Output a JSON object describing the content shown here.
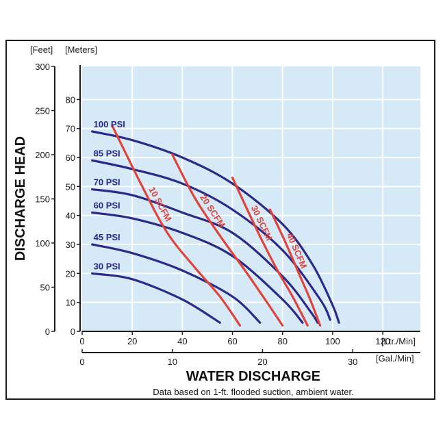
{
  "chart_data": {
    "type": "line",
    "title": "",
    "xlabel": "WATER DISCHARGE",
    "ylabel": "DISCHARGE HEAD",
    "note": "Data based on 1-ft. flooded suction, ambient water.",
    "x_primary": {
      "unit_label": "[Ltr./Min]",
      "ticks": [
        0,
        20,
        40,
        60,
        80,
        100,
        120
      ],
      "range": [
        0,
        135
      ]
    },
    "x_secondary": {
      "unit_label": "[Gal./Min]",
      "ticks": [
        0,
        10,
        20,
        30
      ],
      "range": [
        0,
        37.5
      ]
    },
    "y_feet": {
      "unit_label": "[Feet]",
      "ticks": [
        0,
        50,
        100,
        150,
        200,
        250,
        300
      ],
      "range": [
        0,
        300
      ]
    },
    "y_meters": {
      "unit_label": "[Meters]",
      "ticks": [
        0,
        10,
        20,
        30,
        40,
        50,
        60,
        70,
        80
      ],
      "range": [
        0,
        91.44
      ]
    },
    "grid": true,
    "pressure_series": [
      {
        "name": "100 PSI",
        "x": [
          4,
          20,
          40,
          60,
          80,
          92,
          100,
          102.5
        ],
        "y": [
          69,
          66,
          60,
          51,
          37,
          23,
          9,
          3
        ]
      },
      {
        "name": "85 PSI",
        "x": [
          4,
          20,
          40,
          60,
          80,
          95,
          99
        ],
        "y": [
          59,
          56,
          51,
          42,
          28,
          11,
          4
        ]
      },
      {
        "name": "70 PSI",
        "x": [
          4,
          20,
          40,
          60,
          80,
          91,
          94
        ],
        "y": [
          49,
          47,
          41,
          34,
          19,
          7,
          3
        ]
      },
      {
        "name": "60 PSI",
        "x": [
          4,
          20,
          40,
          60,
          80,
          88
        ],
        "y": [
          41,
          39,
          34,
          26,
          11,
          3
        ]
      },
      {
        "name": "45 PSI",
        "x": [
          4,
          20,
          40,
          60,
          71
        ],
        "y": [
          30,
          27,
          21,
          12,
          3
        ]
      },
      {
        "name": "30 PSI",
        "x": [
          4,
          20,
          40,
          55
        ],
        "y": [
          20,
          18,
          11,
          3
        ]
      }
    ],
    "air_series": [
      {
        "name": "10 SCFM",
        "x": [
          12,
          24,
          34,
          45,
          55,
          63
        ],
        "y": [
          71,
          50,
          34,
          22,
          12,
          2
        ]
      },
      {
        "name": "20 SCFM",
        "x": [
          36,
          45,
          55,
          65,
          73,
          80
        ],
        "y": [
          61,
          46,
          33,
          21,
          11,
          2
        ]
      },
      {
        "name": "30 SCFM",
        "x": [
          60,
          67,
          72,
          78,
          84,
          90
        ],
        "y": [
          53,
          40,
          31,
          21,
          12,
          2
        ]
      },
      {
        "name": "40 SCFM",
        "x": [
          75,
          81,
          86,
          91,
          95
        ],
        "y": [
          42,
          31,
          21,
          11,
          2
        ]
      }
    ]
  }
}
